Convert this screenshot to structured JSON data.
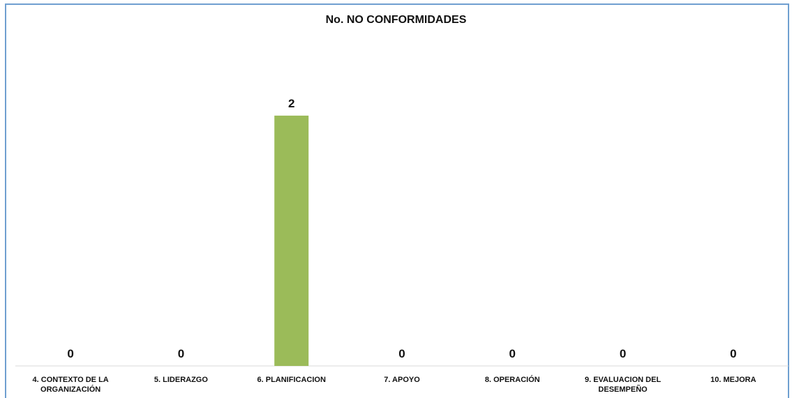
{
  "chart_data": {
    "type": "bar",
    "title": "No. NO CONFORMIDADES",
    "categories": [
      "4. CONTEXTO DE LA ORGANIZACIÓN",
      "5. LIDERAZGO",
      "6. PLANIFICACION",
      "7. APOYO",
      "8. OPERACIÓN",
      "9. EVALUACION DEL DESEMPEÑO",
      "10. MEJORA"
    ],
    "category_lines": [
      [
        "4. CONTEXTO DE LA",
        "ORGANIZACIÓN"
      ],
      [
        "5. LIDERAZGO"
      ],
      [
        "6. PLANIFICACION"
      ],
      [
        "7. APOYO"
      ],
      [
        "8. OPERACIÓN"
      ],
      [
        "9. EVALUACION DEL",
        "DESEMPEÑO"
      ],
      [
        "10. MEJORA"
      ]
    ],
    "values": [
      0,
      0,
      2,
      0,
      0,
      0,
      0
    ],
    "ylim": [
      0,
      2.3
    ],
    "bar_color": "#9bbb59",
    "axis_color": "#d9d9d9",
    "grid": false,
    "legend": "none",
    "xlabel": "",
    "ylabel": ""
  }
}
